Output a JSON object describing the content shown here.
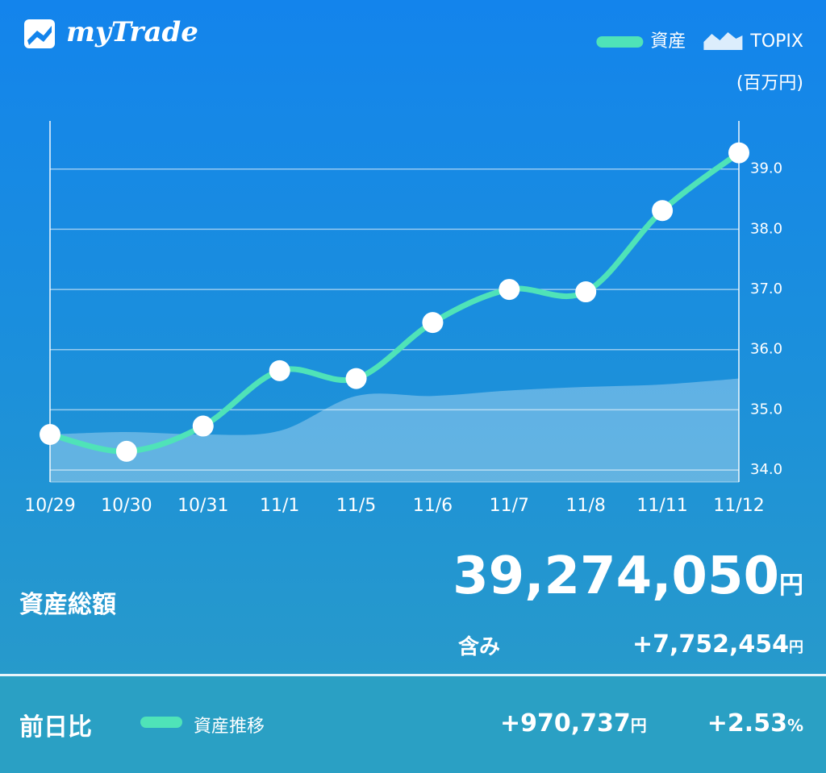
{
  "app": {
    "logo": "myTrade"
  },
  "chart_data": {
    "type": "line",
    "y_label": "(百万円)",
    "categories": [
      "10/29",
      "10/30",
      "10/31",
      "11/1",
      "11/5",
      "11/6",
      "11/7",
      "11/8",
      "11/11",
      "11/12"
    ],
    "series": [
      {
        "name": "資産",
        "color": "#4fe3b8",
        "values": [
          34.59,
          34.31,
          34.73,
          35.65,
          35.52,
          36.45,
          37.0,
          36.96,
          38.31,
          39.27
        ]
      },
      {
        "name": "TOPIX",
        "color": "#ffffff",
        "type": "area",
        "values": [
          34.59,
          34.63,
          34.59,
          34.65,
          35.23,
          35.23,
          35.32,
          35.38,
          35.42,
          35.52
        ]
      }
    ],
    "ylim": [
      33.8,
      39.8
    ],
    "yticks": [
      {
        "value": 34,
        "label": "34.0"
      },
      {
        "value": 35,
        "label": "35.0"
      },
      {
        "value": 36,
        "label": "36.0"
      },
      {
        "value": 37,
        "label": "37.0"
      },
      {
        "value": 38,
        "label": "38.0"
      },
      {
        "value": 39,
        "label": "39.0"
      }
    ],
    "grid": true,
    "legend": "top-right"
  },
  "summary": {
    "total_label": "資産総額",
    "total_value": "39,274,050",
    "total_unit": "円",
    "unrealized_label": "含み",
    "unrealized_value": "+7,752,454",
    "unrealized_unit": "円"
  },
  "daily": {
    "label": "前日比",
    "legend": "資産推移",
    "change_value": "+970,737",
    "change_unit": "円",
    "rate_value": "+2.53",
    "rate_unit": "%"
  }
}
